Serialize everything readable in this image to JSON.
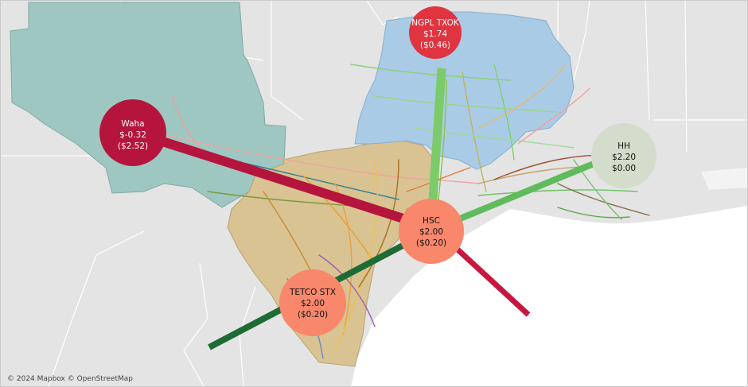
{
  "map": {
    "attribution": "© 2024 Mapbox  © OpenStreetMap",
    "colors": {
      "land": "#e4e4e4",
      "water": "#ffffff",
      "border": "#ffffff",
      "permian_region": "#9fc7c1",
      "midcon_region": "#a9cbe6",
      "gulf_region": "#d9c393"
    }
  },
  "hubs": [
    {
      "id": "waha",
      "name": "Waha",
      "price": "$-0.32",
      "basis": "($2.52)",
      "color": "#b5153c",
      "label_color": "light"
    },
    {
      "id": "ngpl-txok",
      "name": "NGPL TXOK",
      "price": "$1.74",
      "basis": "($0.46)",
      "color": "#e03440",
      "label_color": "light"
    },
    {
      "id": "hh",
      "name": "HH",
      "price": "$2.20",
      "basis": "$0.00",
      "color": "#d4dccb",
      "label_color": "dark"
    },
    {
      "id": "hsc",
      "name": "HSC",
      "price": "$2.00",
      "basis": "($0.20)",
      "color": "#f8876c",
      "label_color": "dark"
    },
    {
      "id": "tetco-stx",
      "name": "TETCO STX",
      "price": "$2.00",
      "basis": "($0.20)",
      "color": "#f8876c",
      "label_color": "dark"
    }
  ],
  "flows": [
    {
      "from": "waha",
      "to": "hsc",
      "color": "#b5153c"
    },
    {
      "from": "hsc",
      "to": "gulf-offshore",
      "color": "#c8173e"
    },
    {
      "from": "ngpl-txok",
      "to": "hsc",
      "color": "#7ccb6a"
    },
    {
      "from": "hh",
      "to": "hsc",
      "color": "#5fbb5c"
    },
    {
      "from": "hsc",
      "to": "tetco-stx",
      "color": "#1f6b35"
    }
  ]
}
